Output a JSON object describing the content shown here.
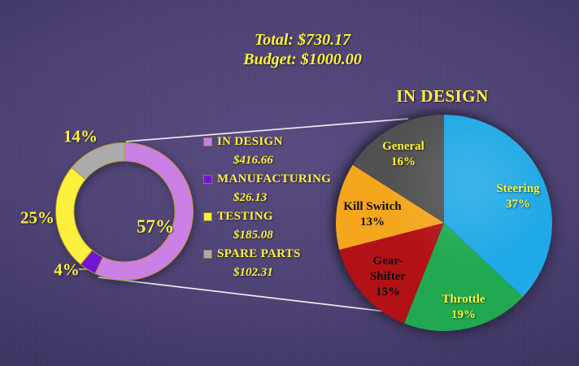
{
  "header": {
    "total": "Total: $730.17",
    "budget": "Budget: $1000.00"
  },
  "colors": {
    "background_center": "#584b80",
    "background_edge": "#322a52",
    "accent_yellow_text": "#fdf23c",
    "donut_outline_gold": "#b6952f",
    "callout_line": "#f3f1f8"
  },
  "chart_data": [
    {
      "type": "donut",
      "title": "",
      "description_texts": [
        "Total: $730.17",
        "Budget: $1000.00"
      ],
      "start_angle_deg_clockwise_from_top": 0,
      "legend_position": "right",
      "slices": [
        {
          "label": "IN DESIGN",
          "pct": 57,
          "pct_label": "57%",
          "value": "$416.66",
          "color": "#cb80e6"
        },
        {
          "label": "MANUFACTURING",
          "pct": 4,
          "pct_label": "4%",
          "value": "$26.13",
          "color": "#7314d2"
        },
        {
          "label": "TESTING",
          "pct": 25,
          "pct_label": "25%",
          "value": "$185.08",
          "color": "#fbf13c"
        },
        {
          "label": "SPARE PARTS",
          "pct": 14,
          "pct_label": "14%",
          "value": "$102.31",
          "color": "#ababab"
        }
      ]
    },
    {
      "type": "pie",
      "title": "IN DESIGN",
      "start_angle_deg_clockwise_from_top": 0,
      "slices": [
        {
          "label": "Steering",
          "pct": 37,
          "pct_label": "37%",
          "color": "#1fa9e6",
          "text_color": "#fdf23c"
        },
        {
          "label": "Throttle",
          "pct": 19,
          "pct_label": "19%",
          "color": "#21a951",
          "text_color": "#fdf23c"
        },
        {
          "label": "Gear-Shifter",
          "pct": 15,
          "pct_label": "15%",
          "color": "#b21216",
          "text_color": "#0b0b0b"
        },
        {
          "label": "Kill Switch",
          "pct": 13,
          "pct_label": "13%",
          "color": "#f4a71c",
          "text_color": "#0b0b0b"
        },
        {
          "label": "General",
          "pct": 16,
          "pct_label": "16%",
          "color": "#515151",
          "text_color": "#fdf23c"
        }
      ]
    }
  ]
}
